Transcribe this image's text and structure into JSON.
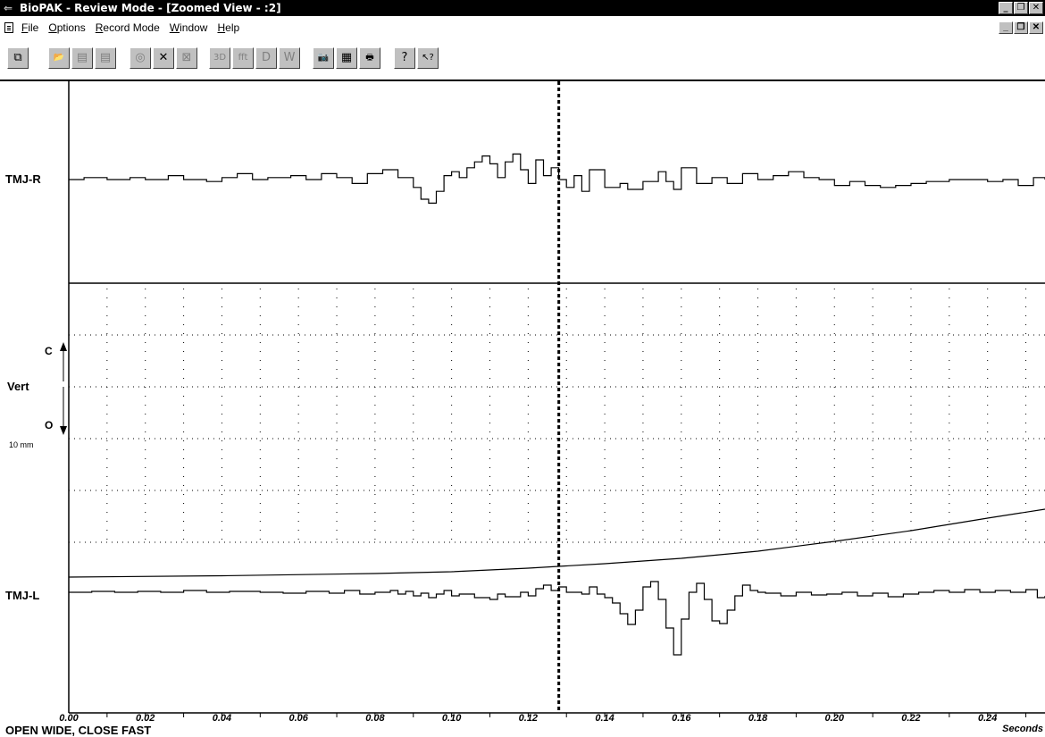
{
  "window": {
    "title": "BioPAK - Review Mode - [Zoomed View - :2]"
  },
  "menu": {
    "items": [
      {
        "accel": "F",
        "rest": "ile"
      },
      {
        "accel": "O",
        "rest": "ptions"
      },
      {
        "accel": "R",
        "rest": "ecord Mode"
      },
      {
        "accel": "W",
        "rest": "indow"
      },
      {
        "accel": "H",
        "rest": "elp"
      }
    ]
  },
  "toolbar": {
    "buttons": [
      {
        "icon": "copy-window-icon",
        "glyph": "⧉"
      },
      {
        "icon": "open-file-icon",
        "glyph": "📂"
      },
      {
        "icon": "save-file-icon",
        "glyph": "▤"
      },
      {
        "icon": "export-file-icon",
        "glyph": "▤"
      },
      {
        "icon": "target-icon",
        "glyph": "◎"
      },
      {
        "icon": "x-icon",
        "glyph": "✕"
      },
      {
        "icon": "close-page-icon",
        "glyph": "⊠"
      },
      {
        "icon": "3d-icon",
        "glyph": "3D"
      },
      {
        "icon": "fft-icon",
        "glyph": "fft"
      },
      {
        "icon": "d-icon",
        "glyph": "D"
      },
      {
        "icon": "w-icon",
        "glyph": "W"
      },
      {
        "icon": "camera-icon",
        "glyph": "📷"
      },
      {
        "icon": "calculator-icon",
        "glyph": "▦"
      },
      {
        "icon": "printer-icon",
        "glyph": "🖶"
      },
      {
        "icon": "help-icon",
        "glyph": "?"
      },
      {
        "icon": "context-help-icon",
        "glyph": "↖?"
      }
    ]
  },
  "channels": {
    "top_label": "TMJ-R",
    "bottom_label": "TMJ-L",
    "axis_label": "Vert",
    "axis_close": "C",
    "axis_open": "O",
    "scale_label": "10 mm"
  },
  "status_text": "OPEN WIDE, CLOSE FAST",
  "chart_data": {
    "type": "line",
    "x": {
      "ticks": [
        "0.00",
        "0.02",
        "0.04",
        "0.06",
        "0.08",
        "0.10",
        "0.12",
        "0.14",
        "0.16",
        "0.18",
        "0.20",
        "0.22",
        "0.24"
      ],
      "range": [
        0.0,
        0.255
      ],
      "label": "Seconds"
    },
    "cursor_x": 0.128,
    "grid": true,
    "series": [
      {
        "id": "tmj-r",
        "points": [
          [
            0,
            0
          ],
          [
            0.004,
            1
          ],
          [
            0.01,
            0
          ],
          [
            0.016,
            1
          ],
          [
            0.02,
            0
          ],
          [
            0.026,
            2
          ],
          [
            0.03,
            0
          ],
          [
            0.036,
            -1
          ],
          [
            0.04,
            1
          ],
          [
            0.044,
            3
          ],
          [
            0.048,
            0
          ],
          [
            0.052,
            1
          ],
          [
            0.058,
            2
          ],
          [
            0.062,
            0
          ],
          [
            0.066,
            3
          ],
          [
            0.07,
            1
          ],
          [
            0.074,
            -2
          ],
          [
            0.078,
            3
          ],
          [
            0.082,
            5
          ],
          [
            0.086,
            1
          ],
          [
            0.09,
            -4
          ],
          [
            0.092,
            -10
          ],
          [
            0.094,
            -12
          ],
          [
            0.096,
            -6
          ],
          [
            0.098,
            2
          ],
          [
            0.1,
            4
          ],
          [
            0.102,
            1
          ],
          [
            0.104,
            6
          ],
          [
            0.106,
            9
          ],
          [
            0.108,
            12
          ],
          [
            0.11,
            8
          ],
          [
            0.112,
            1
          ],
          [
            0.114,
            9
          ],
          [
            0.116,
            13
          ],
          [
            0.118,
            5
          ],
          [
            0.12,
            -2
          ],
          [
            0.122,
            10
          ],
          [
            0.124,
            2
          ],
          [
            0.126,
            6
          ],
          [
            0.128,
            0
          ],
          [
            0.13,
            -4
          ],
          [
            0.132,
            2
          ],
          [
            0.134,
            -6
          ],
          [
            0.136,
            5
          ],
          [
            0.14,
            -4
          ],
          [
            0.144,
            -2
          ],
          [
            0.146,
            -5
          ],
          [
            0.15,
            -1
          ],
          [
            0.154,
            4
          ],
          [
            0.156,
            -1
          ],
          [
            0.158,
            -5
          ],
          [
            0.16,
            6
          ],
          [
            0.164,
            -2
          ],
          [
            0.168,
            1
          ],
          [
            0.172,
            -2
          ],
          [
            0.176,
            3
          ],
          [
            0.18,
            0
          ],
          [
            0.184,
            2
          ],
          [
            0.188,
            4
          ],
          [
            0.192,
            1
          ],
          [
            0.196,
            0
          ],
          [
            0.2,
            -3
          ],
          [
            0.204,
            -1
          ],
          [
            0.208,
            -3
          ],
          [
            0.212,
            -4
          ],
          [
            0.216,
            -3
          ],
          [
            0.22,
            -2
          ],
          [
            0.224,
            -1
          ],
          [
            0.23,
            0
          ],
          [
            0.24,
            -1
          ],
          [
            0.244,
            0
          ],
          [
            0.248,
            -3
          ],
          [
            0.252,
            1
          ],
          [
            0.255,
            0
          ]
        ]
      },
      {
        "id": "tmj-l",
        "points": [
          [
            0,
            0
          ],
          [
            0.006,
            1
          ],
          [
            0.012,
            0
          ],
          [
            0.018,
            1
          ],
          [
            0.024,
            0
          ],
          [
            0.03,
            2
          ],
          [
            0.036,
            0
          ],
          [
            0.042,
            1
          ],
          [
            0.05,
            0
          ],
          [
            0.056,
            -1
          ],
          [
            0.062,
            1
          ],
          [
            0.068,
            -1
          ],
          [
            0.072,
            2
          ],
          [
            0.076,
            -2
          ],
          [
            0.08,
            0
          ],
          [
            0.084,
            2
          ],
          [
            0.086,
            -2
          ],
          [
            0.088,
            1
          ],
          [
            0.09,
            -4
          ],
          [
            0.092,
            -1
          ],
          [
            0.094,
            -6
          ],
          [
            0.096,
            -2
          ],
          [
            0.098,
            2
          ],
          [
            0.1,
            -4
          ],
          [
            0.102,
            -2
          ],
          [
            0.106,
            -6
          ],
          [
            0.11,
            -8
          ],
          [
            0.112,
            -2
          ],
          [
            0.114,
            -5
          ],
          [
            0.118,
            0
          ],
          [
            0.12,
            -4
          ],
          [
            0.122,
            4
          ],
          [
            0.124,
            8
          ],
          [
            0.126,
            2
          ],
          [
            0.128,
            6
          ],
          [
            0.13,
            0
          ],
          [
            0.134,
            -2
          ],
          [
            0.136,
            6
          ],
          [
            0.138,
            -2
          ],
          [
            0.14,
            -6
          ],
          [
            0.142,
            -12
          ],
          [
            0.144,
            -24
          ],
          [
            0.146,
            -36
          ],
          [
            0.148,
            -20
          ],
          [
            0.15,
            6
          ],
          [
            0.152,
            12
          ],
          [
            0.154,
            -8
          ],
          [
            0.156,
            -40
          ],
          [
            0.158,
            -70
          ],
          [
            0.16,
            -30
          ],
          [
            0.162,
            0
          ],
          [
            0.164,
            10
          ],
          [
            0.166,
            -8
          ],
          [
            0.168,
            -32
          ],
          [
            0.17,
            -35
          ],
          [
            0.172,
            -20
          ],
          [
            0.174,
            -4
          ],
          [
            0.176,
            8
          ],
          [
            0.178,
            2
          ],
          [
            0.18,
            0
          ],
          [
            0.182,
            -1
          ],
          [
            0.186,
            -4
          ],
          [
            0.19,
            0
          ],
          [
            0.194,
            -3
          ],
          [
            0.198,
            -2
          ],
          [
            0.202,
            0
          ],
          [
            0.206,
            -4
          ],
          [
            0.21,
            -1
          ],
          [
            0.214,
            -5
          ],
          [
            0.218,
            -2
          ],
          [
            0.222,
            0
          ],
          [
            0.226,
            2
          ],
          [
            0.23,
            0
          ],
          [
            0.234,
            3
          ],
          [
            0.238,
            0
          ],
          [
            0.242,
            2
          ],
          [
            0.246,
            0
          ],
          [
            0.25,
            3
          ],
          [
            0.253,
            -6
          ],
          [
            0.255,
            -4
          ]
        ]
      },
      {
        "id": "vert",
        "points": [
          [
            0,
            0
          ],
          [
            0.04,
            1.5
          ],
          [
            0.08,
            4
          ],
          [
            0.1,
            6
          ],
          [
            0.12,
            10
          ],
          [
            0.14,
            15
          ],
          [
            0.16,
            21
          ],
          [
            0.18,
            29
          ],
          [
            0.2,
            40
          ],
          [
            0.22,
            52
          ],
          [
            0.24,
            66
          ],
          [
            0.255,
            76
          ]
        ]
      }
    ]
  }
}
